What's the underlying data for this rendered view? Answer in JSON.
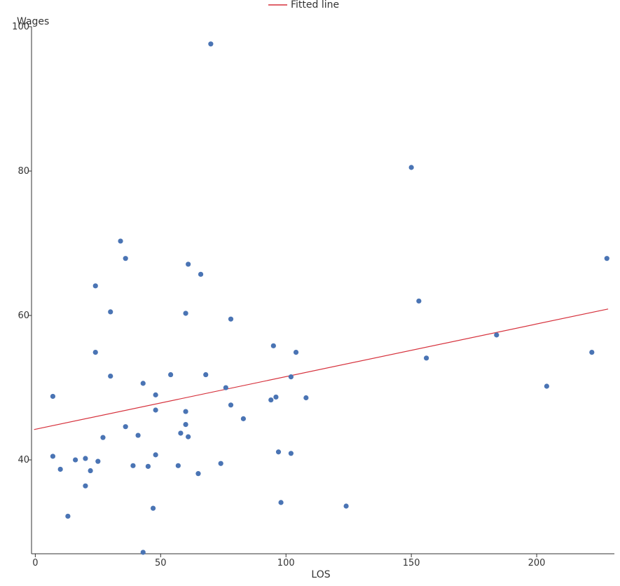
{
  "chart_data": {
    "type": "scatter",
    "title": "",
    "xlabel": "LOS",
    "ylabel": "Wages",
    "xlim": [
      -1.5,
      231
    ],
    "ylim": [
      27,
      100
    ],
    "xticks": [
      0,
      50,
      100,
      150,
      200
    ],
    "yticks": [
      40,
      60,
      80,
      100
    ],
    "x_tick_labels": [
      "0",
      "50",
      "100",
      "150",
      "200"
    ],
    "y_tick_labels": [
      "40",
      "60",
      "80",
      "100"
    ],
    "grid": false,
    "legend": {
      "placement": "top-center",
      "entries": [
        "Fitted line"
      ]
    },
    "colors": {
      "points": "#4a74b4",
      "line": "#d6313c",
      "axis": "#333333"
    },
    "series": [
      {
        "type": "scatter",
        "points": [
          [
            7,
            48.8
          ],
          [
            7,
            40.5
          ],
          [
            10,
            38.7
          ],
          [
            13,
            32.2
          ],
          [
            16,
            40.0
          ],
          [
            20,
            40.2
          ],
          [
            20,
            36.4
          ],
          [
            22,
            38.5
          ],
          [
            24,
            64.1
          ],
          [
            24,
            54.9
          ],
          [
            25,
            39.8
          ],
          [
            27,
            43.1
          ],
          [
            30,
            60.5
          ],
          [
            30,
            51.6
          ],
          [
            34,
            70.3
          ],
          [
            36,
            67.9
          ],
          [
            36,
            44.6
          ],
          [
            39,
            39.2
          ],
          [
            41,
            43.4
          ],
          [
            43,
            50.6
          ],
          [
            43,
            27.2
          ],
          [
            45,
            39.1
          ],
          [
            47,
            33.3
          ],
          [
            48,
            49.0
          ],
          [
            48,
            46.9
          ],
          [
            48,
            40.7
          ],
          [
            54,
            51.8
          ],
          [
            57,
            39.2
          ],
          [
            58,
            43.7
          ],
          [
            60,
            60.3
          ],
          [
            60,
            46.7
          ],
          [
            60,
            44.9
          ],
          [
            61,
            67.1
          ],
          [
            61,
            43.2
          ],
          [
            65,
            38.1
          ],
          [
            66,
            65.7
          ],
          [
            68,
            51.8
          ],
          [
            70,
            97.6
          ],
          [
            74,
            39.5
          ],
          [
            76,
            50.0
          ],
          [
            78,
            59.5
          ],
          [
            78,
            47.6
          ],
          [
            83,
            45.7
          ],
          [
            94,
            48.3
          ],
          [
            95,
            55.8
          ],
          [
            96,
            48.7
          ],
          [
            97,
            41.1
          ],
          [
            98,
            34.1
          ],
          [
            102,
            51.5
          ],
          [
            102,
            40.9
          ],
          [
            104,
            54.9
          ],
          [
            108,
            48.6
          ],
          [
            124,
            33.6
          ],
          [
            150,
            80.5
          ],
          [
            153,
            62.0
          ],
          [
            156,
            54.1
          ],
          [
            184,
            57.3
          ],
          [
            204,
            50.2
          ],
          [
            222,
            54.9
          ],
          [
            228,
            67.9
          ]
        ]
      },
      {
        "name": "Fitted line",
        "type": "line",
        "points": [
          [
            -0.5,
            44.2
          ],
          [
            228.5,
            60.9
          ]
        ]
      }
    ]
  }
}
